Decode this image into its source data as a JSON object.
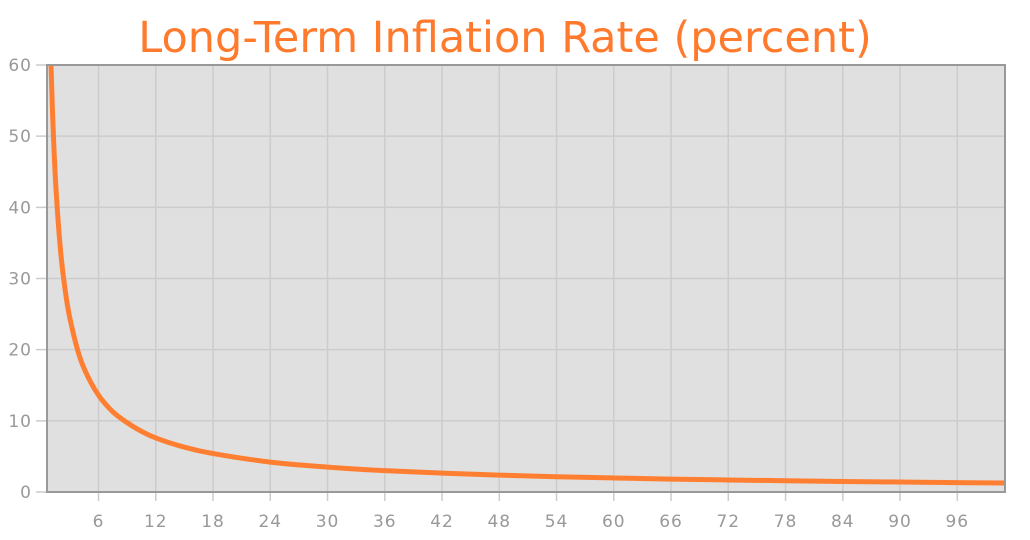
{
  "chart_data": {
    "type": "line",
    "title": "Long-Term Inflation Rate (percent)",
    "xlabel": "",
    "ylabel": "",
    "xlim": [
      0.6,
      101
    ],
    "ylim": [
      0,
      60
    ],
    "xticks": [
      6,
      12,
      18,
      24,
      30,
      36,
      42,
      48,
      54,
      60,
      66,
      72,
      78,
      84,
      90,
      96
    ],
    "yticks": [
      0,
      10,
      20,
      30,
      40,
      50,
      60
    ],
    "grid": true,
    "colors": {
      "line": "#ff7f32",
      "title": "#ff7a2c",
      "plot_bg": "#e0e0e0",
      "grid": "#cccccc",
      "axis": "#999999"
    },
    "series": [
      {
        "x": [
          1.02,
          1.2,
          1.5,
          2,
          2.5,
          3,
          4,
          5,
          6,
          7,
          8,
          10,
          12,
          15,
          18,
          24,
          30,
          36,
          42,
          48,
          54,
          60,
          66,
          72,
          78,
          84,
          90,
          96,
          101
        ],
        "y": [
          60,
          52.6,
          43.6,
          34.2,
          28.4,
          24.4,
          19.1,
          15.9,
          13.6,
          11.95,
          10.7,
          8.9,
          7.6,
          6.3,
          5.4,
          4.2,
          3.5,
          3.0,
          2.65,
          2.37,
          2.15,
          1.97,
          1.81,
          1.69,
          1.58,
          1.48,
          1.4,
          1.32,
          1.27
        ]
      }
    ]
  }
}
